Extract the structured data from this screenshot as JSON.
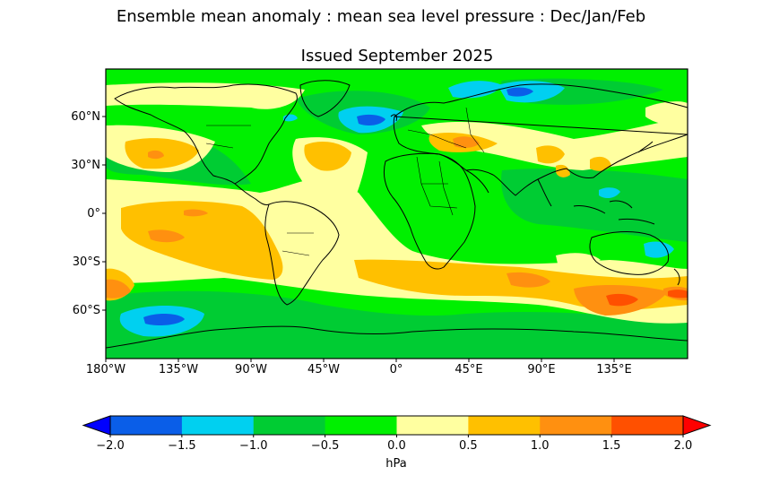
{
  "figure": {
    "suptitle": "Ensemble mean anomaly : mean sea level pressure : Dec/Jan/Feb",
    "subtitle": "Issued September 2025"
  },
  "map": {
    "projection": "plate-carree",
    "lon_ticks": [
      "180°W",
      "135°W",
      "90°W",
      "45°W",
      "0°",
      "45°E",
      "90°E",
      "135°E"
    ],
    "lat_ticks": [
      "60°N",
      "30°N",
      "0°",
      "30°S",
      "60°S"
    ],
    "lon_values": [
      -180,
      -135,
      -90,
      -45,
      0,
      45,
      90,
      135
    ],
    "lat_values": [
      60,
      30,
      0,
      -30,
      -60
    ]
  },
  "colorbar": {
    "unit": "hPa",
    "extend": "both",
    "levels": [
      -2.0,
      -1.5,
      -1.0,
      -0.5,
      0.0,
      0.5,
      1.0,
      1.5,
      2.0
    ],
    "tick_labels": [
      "−2.0",
      "−1.5",
      "−1.0",
      "−0.5",
      "0.0",
      "0.5",
      "1.0",
      "1.5",
      "2.0"
    ],
    "colors": [
      "#0a5ee8",
      "#00d0f0",
      "#00cc33",
      "#00f000",
      "#ffffa0",
      "#ffc000",
      "#ff9010",
      "#ff5000"
    ],
    "under_color": "#0000ff",
    "over_color": "#ff0000"
  }
}
